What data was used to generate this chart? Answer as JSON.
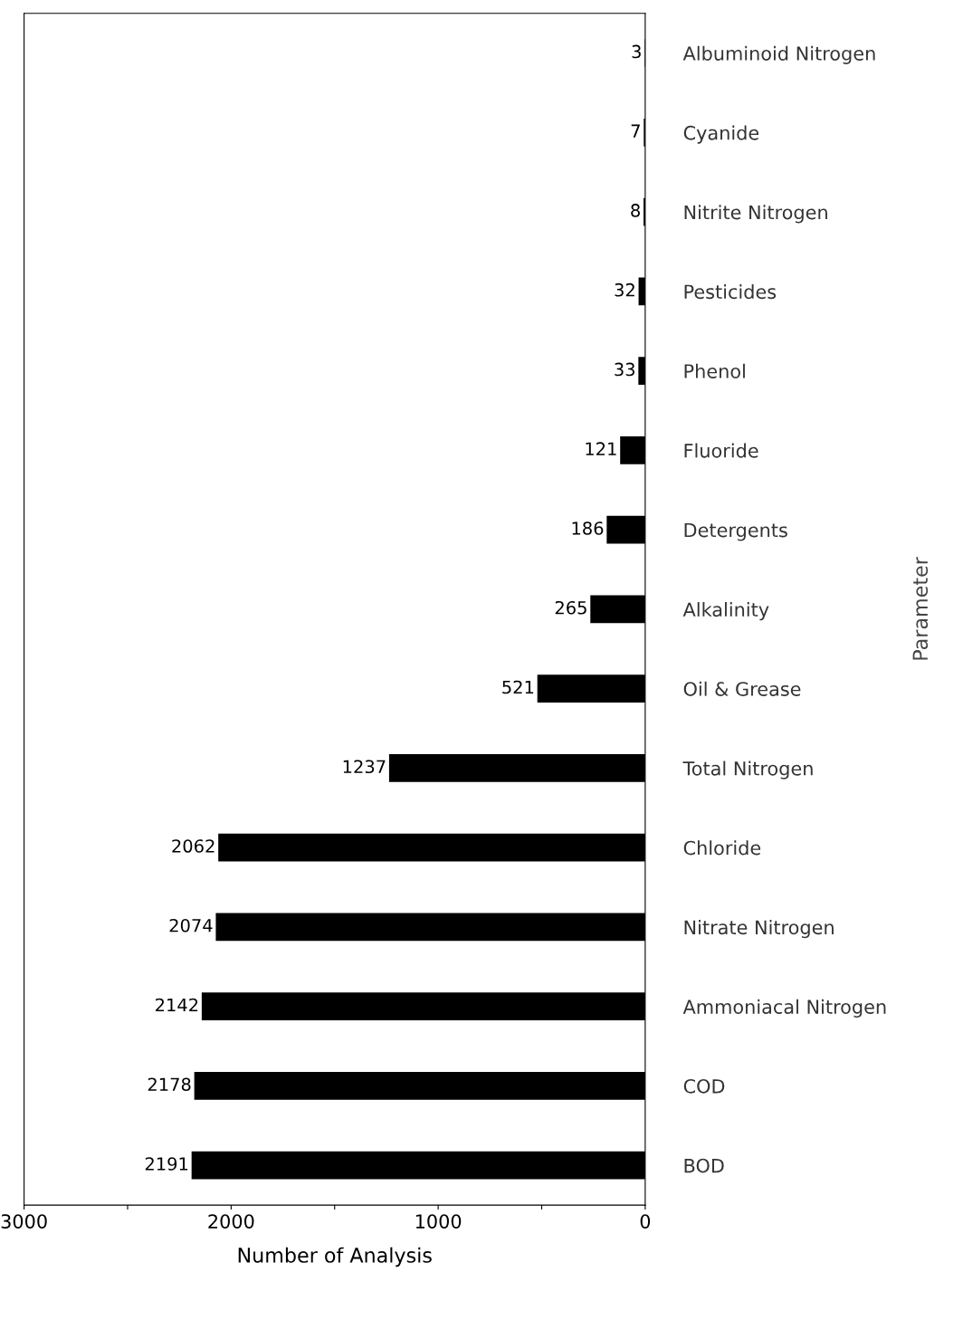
{
  "chart_data": {
    "type": "bar",
    "orientation": "horizontal",
    "xlabel": "Number of Analysis",
    "ylabel": "Parameter",
    "categories": [
      "Albuminoid Nitrogen",
      "Cyanide",
      "Nitrite Nitrogen",
      "Pesticides",
      "Phenol",
      "Fluoride",
      "Detergents",
      "Alkalinity",
      "Oil & Grease",
      "Total Nitrogen",
      "Chloride",
      "Nitrate Nitrogen",
      "Ammoniacal Nitrogen",
      "COD",
      "BOD"
    ],
    "values": [
      3,
      7,
      8,
      32,
      33,
      121,
      186,
      265,
      521,
      1237,
      2062,
      2074,
      2142,
      2178,
      2191
    ],
    "color": "#000000",
    "data_labels": true,
    "xlim": [
      3000,
      0
    ],
    "xticks": [
      3000,
      {
        "value": 2500,
        "label": null
      },
      2000,
      {
        "value": 1500,
        "label": null
      },
      1000,
      {
        "value": 500,
        "label": null
      },
      0
    ],
    "grid": false
  }
}
